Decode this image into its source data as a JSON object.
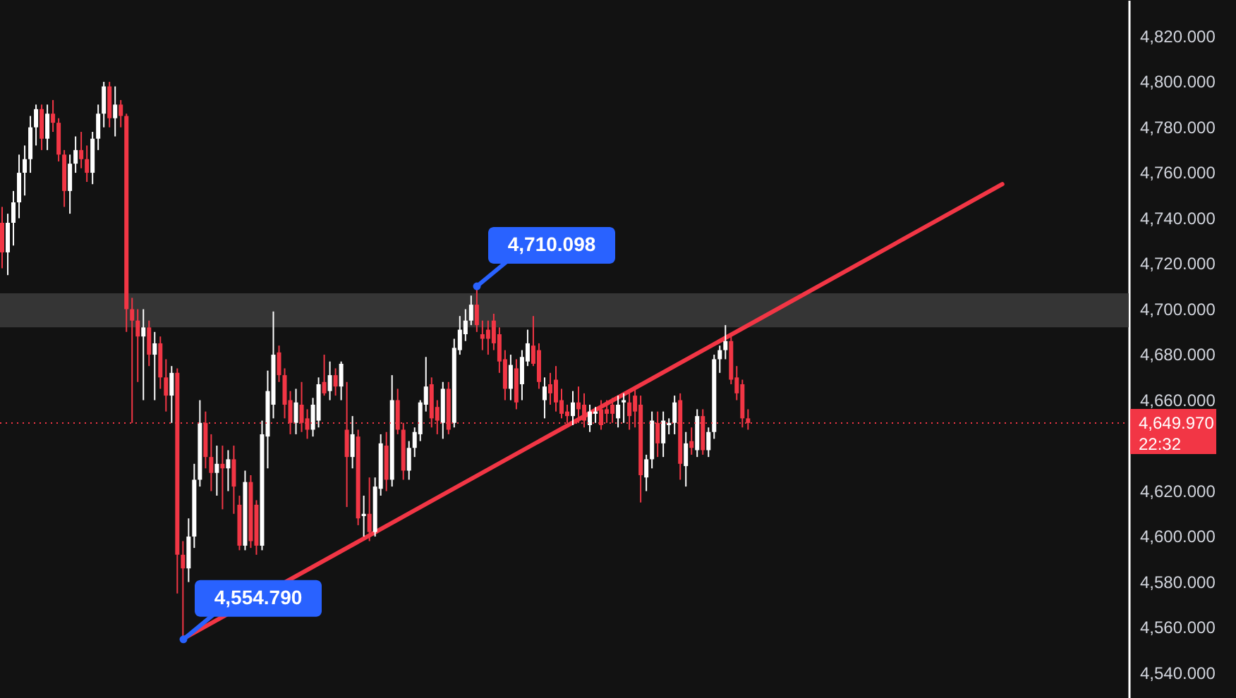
{
  "chart_data": {
    "type": "candlestick",
    "categories": [
      null,
      null,
      null,
      null,
      null,
      null,
      null,
      null,
      null,
      null,
      null,
      null,
      null,
      null,
      null,
      null,
      null,
      null,
      null,
      null,
      null,
      null,
      null,
      null,
      null,
      null,
      null,
      null,
      null,
      null,
      null,
      null,
      null,
      null,
      null,
      null,
      null,
      null,
      null,
      null,
      null,
      null,
      null,
      null,
      null,
      null,
      null,
      null,
      null,
      null,
      null,
      null,
      null,
      null,
      null,
      null,
      null,
      null,
      null,
      null,
      null,
      null,
      null,
      null,
      null,
      null,
      null,
      null,
      null,
      null,
      null,
      null,
      null,
      null,
      null,
      null,
      null,
      null,
      null,
      null,
      null,
      null,
      null,
      null,
      null,
      null,
      null,
      null,
      null,
      null,
      null,
      null,
      null,
      null,
      null,
      null,
      null,
      null,
      null,
      null,
      null,
      null,
      null,
      null,
      null,
      null,
      null,
      null,
      null,
      null,
      null,
      null,
      null,
      null,
      null,
      null,
      null,
      null,
      null,
      null,
      null,
      null,
      null,
      null,
      null,
      null,
      null,
      null,
      null,
      null,
      null,
      null,
      null,
      null,
      null,
      null,
      null,
      null,
      null,
      null,
      null,
      null,
      null,
      null,
      null,
      null,
      null,
      null,
      null,
      null,
      null,
      null,
      null,
      null,
      null,
      null,
      null,
      null,
      null,
      null,
      null,
      null,
      null,
      null,
      null,
      null,
      null,
      null,
      null,
      null,
      null,
      null,
      null,
      null,
      null,
      null,
      null,
      null,
      null,
      null,
      null,
      null,
      null,
      null,
      null,
      null,
      null,
      null,
      null,
      null,
      null,
      null,
      null,
      null,
      null,
      null,
      null,
      null,
      null,
      null
    ],
    "ohlc": [
      [
        4738,
        4745,
        4718,
        4725
      ],
      [
        4725,
        4742,
        4715,
        4738
      ],
      [
        4738,
        4752,
        4728,
        4747
      ],
      [
        4747,
        4768,
        4740,
        4760
      ],
      [
        4760,
        4772,
        4750,
        4766
      ],
      [
        4766,
        4785,
        4760,
        4780
      ],
      [
        4780,
        4790,
        4772,
        4788
      ],
      [
        4788,
        4790,
        4770,
        4775
      ],
      [
        4775,
        4790,
        4770,
        4786
      ],
      [
        4786,
        4792,
        4778,
        4782
      ],
      [
        4782,
        4784,
        4765,
        4768
      ],
      [
        4768,
        4770,
        4745,
        4752
      ],
      [
        4752,
        4768,
        4742,
        4764
      ],
      [
        4764,
        4776,
        4760,
        4770
      ],
      [
        4770,
        4778,
        4762,
        4766
      ],
      [
        4766,
        4772,
        4756,
        4760
      ],
      [
        4760,
        4778,
        4755,
        4775
      ],
      [
        4775,
        4790,
        4770,
        4786
      ],
      [
        4786,
        4800,
        4780,
        4798
      ],
      [
        4798,
        4800,
        4780,
        4784
      ],
      [
        4784,
        4798,
        4776,
        4790
      ],
      [
        4790,
        4792,
        4780,
        4785
      ],
      [
        4785,
        4786,
        4690,
        4700
      ],
      [
        4700,
        4705,
        4650,
        4695
      ],
      [
        4695,
        4700,
        4668,
        4688
      ],
      [
        4688,
        4700,
        4660,
        4692
      ],
      [
        4692,
        4695,
        4675,
        4680
      ],
      [
        4680,
        4690,
        4660,
        4685
      ],
      [
        4685,
        4688,
        4665,
        4670
      ],
      [
        4670,
        4678,
        4655,
        4662
      ],
      [
        4662,
        4675,
        4650,
        4672
      ],
      [
        4672,
        4674,
        4575,
        4592
      ],
      [
        4592,
        4598,
        4554.79,
        4586
      ],
      [
        4586,
        4608,
        4580,
        4600
      ],
      [
        4600,
        4632,
        4595,
        4625
      ],
      [
        4625,
        4660,
        4622,
        4650
      ],
      [
        4650,
        4655,
        4630,
        4635
      ],
      [
        4635,
        4645,
        4620,
        4628
      ],
      [
        4628,
        4640,
        4618,
        4632
      ],
      [
        4632,
        4640,
        4612,
        4630
      ],
      [
        4630,
        4638,
        4620,
        4634
      ],
      [
        4634,
        4640,
        4610,
        4622
      ],
      [
        4614,
        4618,
        4594,
        4596
      ],
      [
        4596,
        4629,
        4594,
        4624
      ],
      [
        4624,
        4627,
        4595,
        4598
      ],
      [
        4614,
        4616,
        4592,
        4596
      ],
      [
        4596,
        4651,
        4594,
        4645
      ],
      [
        4644,
        4673,
        4630,
        4664
      ],
      [
        4658,
        4699,
        4652,
        4680
      ],
      [
        4681,
        4684,
        4668,
        4671
      ],
      [
        4671,
        4674,
        4652,
        4658
      ],
      [
        4660,
        4664,
        4645,
        4650
      ],
      [
        4650,
        4665,
        4645,
        4659
      ],
      [
        4658,
        4668,
        4646,
        4650
      ],
      [
        4652,
        4656,
        4643,
        4647
      ],
      [
        4647,
        4661,
        4644,
        4658
      ],
      [
        4651,
        4670,
        4648,
        4667
      ],
      [
        4668,
        4680,
        4662,
        4663
      ],
      [
        4664,
        4677,
        4660,
        4671
      ],
      [
        4671,
        4674,
        4662,
        4666
      ],
      [
        4666,
        4677,
        4660,
        4676
      ],
      [
        4647,
        4668,
        4613,
        4635
      ],
      [
        4635,
        4653,
        4630,
        4645
      ],
      [
        4644,
        4647,
        4605,
        4608
      ],
      [
        4609,
        4618,
        4600,
        4610
      ],
      [
        4610,
        4626,
        4598,
        4602
      ],
      [
        4602,
        4626,
        4600,
        4622
      ],
      [
        4621,
        4645,
        4618,
        4641
      ],
      [
        4640,
        4646,
        4620,
        4625
      ],
      [
        4625,
        4671,
        4622,
        4660
      ],
      [
        4660,
        4665,
        4645,
        4647
      ],
      [
        4647,
        4650,
        4625,
        4629
      ],
      [
        4629,
        4642,
        4625,
        4639
      ],
      [
        4639,
        4648,
        4635,
        4646
      ],
      [
        4645,
        4660,
        4642,
        4659
      ],
      [
        4658,
        4679,
        4655,
        4666
      ],
      [
        4667,
        4670,
        4648,
        4652
      ],
      [
        4657,
        4660,
        4645,
        4651
      ],
      [
        4650,
        4668,
        4643,
        4665
      ],
      [
        4665,
        4668,
        4645,
        4647
      ],
      [
        4650,
        4687,
        4648,
        4683
      ],
      [
        4682,
        4697,
        4680,
        4691
      ],
      [
        4689,
        4700,
        4686,
        4695
      ],
      [
        4695,
        4706,
        4693,
        4702
      ],
      [
        4702,
        4710.098,
        4690,
        4693
      ],
      [
        4689,
        4695,
        4682,
        4687
      ],
      [
        4691,
        4695,
        4680,
        4687
      ],
      [
        4695,
        4698,
        4682,
        4685
      ],
      [
        4689,
        4692,
        4672,
        4677
      ],
      [
        4678,
        4682,
        4660,
        4665
      ],
      [
        4665,
        4680,
        4660,
        4675.5
      ],
      [
        4674,
        4678,
        4656,
        4659
      ],
      [
        4667,
        4682,
        4660,
        4679
      ],
      [
        4677,
        4691,
        4675,
        4685
      ],
      [
        4684,
        4697,
        4675,
        4676
      ],
      [
        4682,
        4685,
        4665,
        4668
      ],
      [
        4660,
        4670,
        4652,
        4666
      ],
      [
        4667,
        4672,
        4658,
        4663
      ],
      [
        4669,
        4675,
        4655,
        4659
      ],
      [
        4660,
        4665,
        4652,
        4654
      ],
      [
        4655,
        4658,
        4650,
        4653
      ],
      [
        4653,
        4664,
        4649,
        4659
      ],
      [
        4659,
        4666,
        4650,
        4656
      ],
      [
        4658,
        4663,
        4648,
        4651
      ],
      [
        4649,
        4658,
        4646,
        4655
      ],
      [
        4654,
        4657,
        4650,
        4655
      ],
      [
        4656,
        4660,
        4647,
        4649
      ],
      [
        4656,
        4660,
        4650,
        4654
      ],
      [
        4658,
        4661,
        4650,
        4654
      ],
      [
        4652,
        4662,
        4648,
        4658
      ],
      [
        4659,
        4663,
        4650,
        4660
      ],
      [
        4659,
        4663,
        4647,
        4653
      ],
      [
        4662,
        4666,
        4648,
        4655
      ],
      [
        4658,
        4662,
        4615,
        4627
      ],
      [
        4626,
        4636,
        4620,
        4634
      ],
      [
        4634,
        4655,
        4630,
        4651
      ],
      [
        4650,
        4655,
        4635,
        4641
      ],
      [
        4641,
        4655,
        4635,
        4651
      ],
      [
        4649,
        4652,
        4645,
        4650
      ],
      [
        4650,
        4662,
        4645,
        4659
      ],
      [
        4660,
        4663,
        4625,
        4632
      ],
      [
        4631,
        4646,
        4622,
        4641
      ],
      [
        4642,
        4648,
        4636,
        4639
      ],
      [
        4638,
        4656,
        4635,
        4653
      ],
      [
        4653,
        4656,
        4636,
        4638
      ],
      [
        4638,
        4648,
        4635,
        4646
      ],
      [
        4646,
        4680,
        4643,
        4678
      ],
      [
        4678,
        4684,
        4672,
        4682
      ],
      [
        4682,
        4693,
        4678,
        4686
      ],
      [
        4686,
        4688,
        4667,
        4669
      ],
      [
        4670,
        4675,
        4660,
        4663
      ],
      [
        4667,
        4669,
        4648,
        4652
      ],
      [
        4652,
        4656,
        4647,
        4649.97
      ],
      null,
      null,
      null,
      null,
      null,
      null,
      null,
      null,
      null,
      null,
      null,
      null,
      null,
      null,
      null,
      null,
      null,
      null,
      null,
      null,
      null,
      null,
      null,
      null,
      null,
      null,
      null,
      null,
      null,
      null,
      null,
      null,
      null,
      null,
      null,
      null,
      null,
      null,
      null,
      null,
      null,
      null,
      null,
      null,
      null,
      null,
      null,
      null,
      null,
      null,
      null,
      null,
      null,
      null,
      null,
      null,
      null,
      null,
      null,
      null,
      null,
      null,
      null,
      null,
      null,
      null,
      null
    ],
    "colors": [
      "#f23645",
      "#ffffff",
      "#ffffff",
      "#ffffff",
      "#ffffff",
      "#ffffff",
      "#ffffff",
      "#f23645",
      "#ffffff",
      "#f23645",
      "#f23645",
      "#f23645",
      "#ffffff",
      "#ffffff",
      "#f23645",
      "#f23645",
      "#ffffff",
      "#ffffff",
      "#ffffff",
      "#f23645",
      "#ffffff",
      "#f23645",
      "#f23645",
      "#f23645",
      "#f23645",
      "#ffffff",
      "#f23645",
      "#ffffff",
      "#f23645",
      "#f23645",
      "#ffffff",
      "#f23645",
      "#f23645",
      "#ffffff",
      "#ffffff",
      "#ffffff",
      "#f23645",
      "#f23645",
      "#ffffff",
      "#f23645",
      "#ffffff",
      "#f23645",
      "#f23645",
      "#ffffff",
      "#f23645",
      "#f23645",
      "#ffffff",
      "#ffffff",
      "#ffffff",
      "#f23645",
      "#f23645",
      "#f23645",
      "#ffffff",
      "#f23645",
      "#f23645",
      "#ffffff",
      "#ffffff",
      "#f23645",
      "#ffffff",
      "#f23645",
      "#ffffff",
      "#f23645",
      "#ffffff",
      "#f23645",
      "#ffffff",
      "#f23645",
      "#ffffff",
      "#ffffff",
      "#f23645",
      "#ffffff",
      "#f23645",
      "#f23645",
      "#ffffff",
      "#ffffff",
      "#ffffff",
      "#ffffff",
      "#f23645",
      "#f23645",
      "#ffffff",
      "#f23645",
      "#ffffff",
      "#ffffff",
      "#ffffff",
      "#ffffff",
      "#f23645",
      "#f23645",
      "#f23645",
      "#f23645",
      "#f23645",
      "#f23645",
      "#ffffff",
      "#f23645",
      "#ffffff",
      "#ffffff",
      "#f23645",
      "#f23645",
      "#ffffff",
      "#f23645",
      "#f23645",
      "#f23645",
      "#f23645",
      "#ffffff",
      "#f23645",
      "#f23645",
      "#ffffff",
      "#ffffff",
      "#f23645",
      "#f23645",
      "#f23645",
      "#ffffff",
      "#ffffff",
      "#f23645",
      "#f23645",
      "#f23645",
      "#ffffff",
      "#ffffff",
      "#f23645",
      "#ffffff",
      "#ffffff",
      "#ffffff",
      "#f23645",
      "#ffffff",
      "#f23645",
      "#ffffff",
      "#f23645",
      "#ffffff",
      "#ffffff",
      "#ffffff",
      "#ffffff",
      "#f23645",
      "#f23645",
      "#f23645",
      "#f23645",
      null,
      null,
      null,
      null,
      null,
      null,
      null,
      null,
      null,
      null,
      null,
      null,
      null,
      null,
      null,
      null,
      null,
      null,
      null,
      null,
      null,
      null,
      null,
      null,
      null,
      null,
      null,
      null,
      null,
      null,
      null,
      null,
      null,
      null,
      null,
      null,
      null,
      null,
      null,
      null,
      null,
      null,
      null,
      null,
      null,
      null,
      null,
      null,
      null,
      null,
      null,
      null,
      null,
      null,
      null,
      null,
      null,
      null,
      null,
      null,
      null,
      null,
      null,
      null,
      null,
      null,
      null
    ],
    "series": [
      {
        "type": "line",
        "color": "#f23645",
        "values": [
          null,
          null,
          null,
          null,
          null,
          null,
          null,
          null,
          null,
          null,
          null,
          null,
          null,
          null,
          null,
          null,
          null,
          null,
          null,
          null,
          null,
          null,
          null,
          null,
          null,
          null,
          null,
          null,
          null,
          null,
          null,
          null,
          4555,
          null,
          null,
          null,
          null,
          null,
          null,
          null,
          null,
          null,
          null,
          null,
          null,
          null,
          null,
          null,
          null,
          null,
          null,
          null,
          null,
          null,
          null,
          null,
          null,
          null,
          null,
          null,
          null,
          null,
          null,
          null,
          null,
          null,
          null,
          null,
          null,
          null,
          null,
          null,
          null,
          null,
          null,
          null,
          null,
          null,
          null,
          null,
          null,
          null,
          null,
          null,
          null,
          null,
          null,
          null,
          null,
          null,
          null,
          null,
          null,
          null,
          null,
          null,
          null,
          null,
          null,
          null,
          null,
          null,
          null,
          null,
          null,
          null,
          null,
          null,
          null,
          null,
          null,
          null,
          null,
          null,
          null,
          null,
          null,
          null,
          null,
          null,
          null,
          null,
          null,
          null,
          null,
          null,
          null,
          null,
          null,
          null,
          null,
          null,
          null,
          null,
          null,
          null,
          null,
          null,
          null,
          null,
          null,
          null,
          null,
          null,
          null,
          null,
          null,
          null,
          null,
          null,
          null,
          null,
          null,
          null,
          null,
          null,
          null,
          null,
          null,
          null,
          null,
          null,
          null,
          null,
          null,
          null,
          null,
          null,
          null,
          null,
          null,
          null,
          null,
          null,
          null,
          null,
          null,
          4755,
          null,
          null,
          null,
          null,
          null,
          null,
          null,
          null,
          null,
          null,
          null,
          null,
          null,
          null,
          null,
          null,
          null,
          null,
          null,
          null,
          null,
          null
        ]
      }
    ],
    "ylim": [
      4529,
      4836
    ],
    "yticks": [
      {
        "value": 4540,
        "label": "4,540.000"
      },
      {
        "value": 4560,
        "label": "4,560.000"
      },
      {
        "value": 4580,
        "label": "4,580.000"
      },
      {
        "value": 4600,
        "label": "4,600.000"
      },
      {
        "value": 4620,
        "label": "4,620.000"
      },
      {
        "value": 4660,
        "label": "4,660.000"
      },
      {
        "value": 4680,
        "label": "4,680.000"
      },
      {
        "value": 4700,
        "label": "4,700.000"
      },
      {
        "value": 4720,
        "label": "4,720.000"
      },
      {
        "value": 4740,
        "label": "4,740.000"
      },
      {
        "value": 4760,
        "label": "4,760.000"
      },
      {
        "value": 4780,
        "label": "4,780.000"
      },
      {
        "value": 4800,
        "label": "4,800.000"
      },
      {
        "value": 4820,
        "label": "4,820.000"
      }
    ],
    "ref_lines": [
      {
        "axis": "y",
        "value": 4649.97,
        "label": "4,649.970",
        "color": "#f23645",
        "line_style": "dotted"
      }
    ],
    "bands": [
      {
        "axis": "y",
        "from": 4692,
        "to": 4707,
        "color": "#3a3a3a"
      }
    ],
    "annotations": [
      {
        "text": "4,710.098",
        "y": 4710.098
      },
      "4,554.790",
      "22:32"
    ]
  }
}
